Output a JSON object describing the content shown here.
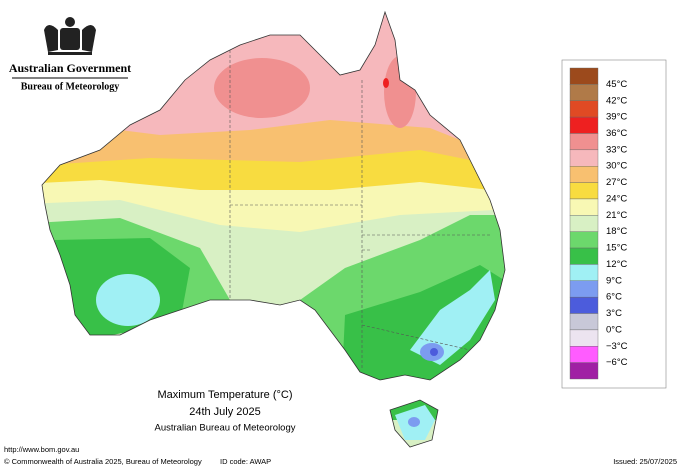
{
  "header": {
    "government": "Australian Government",
    "bureau": "Bureau of Meteorology"
  },
  "map": {
    "title": "Maximum Temperature (°C)",
    "date": "24th July 2025",
    "source": "Australian Bureau of Meteorology"
  },
  "legend": {
    "colors": [
      "#9c4a1c",
      "#b07a48",
      "#e04a24",
      "#ee2020",
      "#f09090",
      "#f6b8bc",
      "#f8c070",
      "#f8dc40",
      "#f8f8b4",
      "#d8f0c4",
      "#6cd86c",
      "#38c048",
      "#a0f0f4",
      "#7c9cf0",
      "#4c5cdc",
      "#c8c8d8",
      "#ece4f0",
      "#ff5cff",
      "#a020a4"
    ],
    "labels": [
      "45°C",
      "42°C",
      "39°C",
      "36°C",
      "33°C",
      "30°C",
      "27°C",
      "24°C",
      "21°C",
      "18°C",
      "15°C",
      "12°C",
      "9°C",
      "6°C",
      "3°C",
      "0°C",
      "−3°C",
      "−6°C"
    ]
  },
  "footer": {
    "url": "http://www.bom.gov.au",
    "copyright": "© Commonwealth of Australia 2025, Bureau of Meteorology",
    "id_code": "ID code: AWAP",
    "issued": "Issued: 25/07/2025"
  }
}
